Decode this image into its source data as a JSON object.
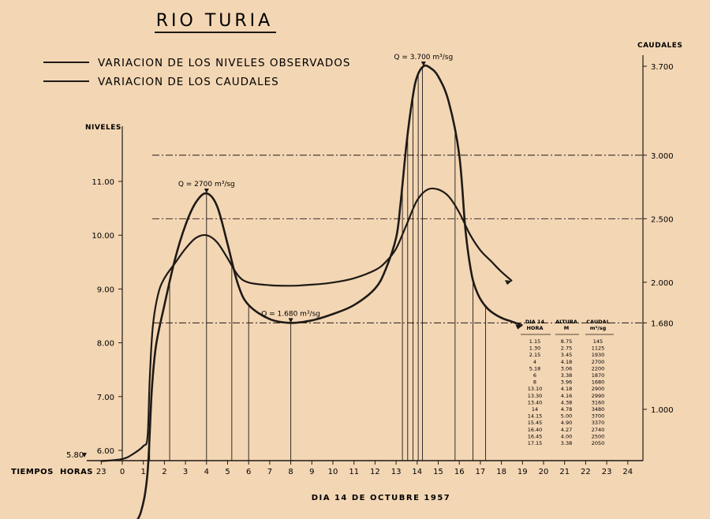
{
  "chart_data": {
    "type": "line",
    "title": "RIO TURIA",
    "xlabel": "DIA 14 DE OCTUBRE 1957",
    "x_axis_prefix": [
      "TIEMPOS",
      "HORAS"
    ],
    "x_ticks": [
      "23",
      "0",
      "1",
      "2",
      "3",
      "4",
      "5",
      "6",
      "7",
      "8",
      "9",
      "10",
      "11",
      "12",
      "13",
      "14",
      "15",
      "16",
      "17",
      "18",
      "19",
      "20",
      "21",
      "22",
      "23",
      "24"
    ],
    "left_axis": {
      "title": "NIVELES",
      "ticks": [
        "6.00",
        "7.00",
        "8.00",
        "9.00",
        "10.00",
        "11.00"
      ],
      "tick_values": [
        6,
        7,
        8,
        9,
        10,
        11
      ],
      "base_label": "5.80",
      "ylim": [
        5.8,
        12.0
      ]
    },
    "right_axis": {
      "title": "CAUDALES",
      "ticks": [
        "1.000",
        "1.680",
        "2.000",
        "2.500",
        "3.000",
        "3.700"
      ],
      "tick_values": [
        1000,
        1680,
        2000,
        2500,
        3000,
        3700
      ],
      "ylim": [
        0,
        4300
      ]
    },
    "series": [
      {
        "name": "VARIACION DE LOS NIVELES OBSERVADOS",
        "axis": "left",
        "x": [
          -1,
          0,
          0.5,
          1.0,
          1.2,
          1.3,
          1.45,
          1.7,
          2.0,
          2.5,
          3.0,
          3.5,
          4.0,
          4.5,
          5.0,
          5.5,
          6.0,
          7.0,
          8.0,
          9.0,
          10.0,
          11.0,
          12.0,
          12.5,
          13.0,
          13.5,
          14.0,
          14.5,
          15.0,
          15.5,
          16.0,
          16.5,
          17.0,
          17.5,
          18.0,
          18.5
        ],
        "y": [
          5.8,
          5.84,
          5.93,
          6.08,
          6.25,
          7.3,
          8.3,
          8.9,
          9.2,
          9.48,
          9.75,
          9.95,
          10.0,
          9.87,
          9.57,
          9.25,
          9.12,
          9.07,
          9.06,
          9.08,
          9.12,
          9.2,
          9.35,
          9.5,
          9.75,
          10.2,
          10.65,
          10.85,
          10.85,
          10.72,
          10.42,
          10.02,
          9.72,
          9.52,
          9.32,
          9.15
        ]
      },
      {
        "name": "VARIACION DE LOS CAUDALES",
        "axis": "right",
        "x": [
          -1,
          0,
          0.5,
          0.9,
          1.2,
          1.4,
          1.6,
          2.0,
          2.5,
          3.0,
          3.5,
          4.0,
          4.5,
          5.0,
          5.5,
          6.0,
          7.0,
          8.0,
          9.0,
          10.0,
          11.0,
          12.0,
          12.5,
          13.0,
          13.2,
          13.5,
          13.8,
          14.0,
          14.3,
          14.6,
          15.0,
          15.5,
          16.0,
          16.3,
          16.6,
          16.9,
          17.2,
          17.5,
          18.0,
          18.5,
          19.0
        ],
        "y": [
          0,
          30,
          90,
          200,
          500,
          1150,
          1500,
          1820,
          2180,
          2450,
          2630,
          2700,
          2600,
          2300,
          1980,
          1820,
          1710,
          1680,
          1700,
          1750,
          1820,
          1950,
          2100,
          2350,
          2600,
          3100,
          3470,
          3620,
          3700,
          3690,
          3620,
          3420,
          3000,
          2400,
          2050,
          1900,
          1820,
          1770,
          1720,
          1690,
          1660
        ]
      }
    ],
    "annotations": [
      {
        "text": "Q = 2700 m³/sg",
        "x": 4,
        "value": 2700
      },
      {
        "text": "Q = 1.680 m³/sg",
        "x": 8,
        "value": 1680
      },
      {
        "text": "Q = 3.700 m³/sg",
        "x": 14.3,
        "value": 3700
      }
    ],
    "reference_levels": [
      1680,
      2500,
      3000
    ],
    "verticals_hours": [
      1.3,
      2.25,
      4.0,
      5.2,
      6.0,
      8.0,
      13.3,
      13.55,
      13.8,
      14.05,
      14.25,
      15.8,
      16.65,
      17.25
    ],
    "table": {
      "headers": [
        [
          "DIA 14",
          "HORA"
        ],
        [
          "ALTURA",
          "M"
        ],
        [
          "CAUDAL",
          "m³/sg"
        ]
      ],
      "rows": [
        [
          "1.15",
          "8.75",
          "145"
        ],
        [
          "1.30",
          "2.75",
          "1125"
        ],
        [
          "2.15",
          "3.45",
          "1930"
        ],
        [
          "4",
          "4.18",
          "2700"
        ],
        [
          "5.18",
          "3.06",
          "2200"
        ],
        [
          "6",
          "3.38",
          "1870"
        ],
        [
          "8",
          "3.96",
          "1680"
        ],
        [
          "13.10",
          "4.18",
          "2900"
        ],
        [
          "13.30",
          "4.16",
          "2990"
        ],
        [
          "13.40",
          "4.38",
          "3160"
        ],
        [
          "14",
          "4.78",
          "3480"
        ],
        [
          "14.15",
          "5.00",
          "3700"
        ],
        [
          "15.45",
          "4.90",
          "3370"
        ],
        [
          "16.40",
          "4.27",
          "2740"
        ],
        [
          "16.45",
          "4.00",
          "2500"
        ],
        [
          "17.15",
          "3.38",
          "2050"
        ]
      ]
    }
  }
}
